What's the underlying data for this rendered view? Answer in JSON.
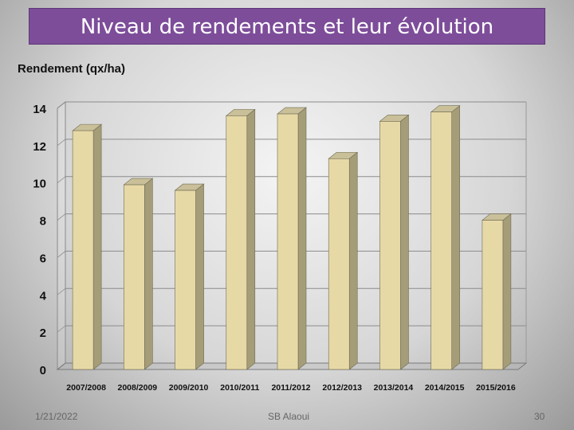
{
  "slide": {
    "title": "Niveau de rendements et leur évolution",
    "footer_date": "1/21/2022",
    "footer_author": "SB Alaoui",
    "page_number": "30"
  },
  "chart_data": {
    "type": "bar",
    "title": "",
    "ylabel": "Rendement (qx/ha)",
    "xlabel": "",
    "categories": [
      "2007/2008",
      "2008/2009",
      "2009/2010",
      "2010/2011",
      "2011/2012",
      "2012/2013",
      "2013/2014",
      "2014/2015",
      "2015/2016"
    ],
    "values": [
      12.8,
      9.9,
      9.6,
      13.6,
      13.7,
      11.3,
      13.3,
      13.8,
      8.0
    ],
    "ylim": [
      0,
      14
    ],
    "yticks": [
      0,
      2,
      4,
      6,
      8,
      10,
      12,
      14
    ],
    "grid": true,
    "bar_color": "#e7d9a6",
    "bar_side_color": "#a59d78",
    "bar_top_color": "#c9c09a"
  }
}
